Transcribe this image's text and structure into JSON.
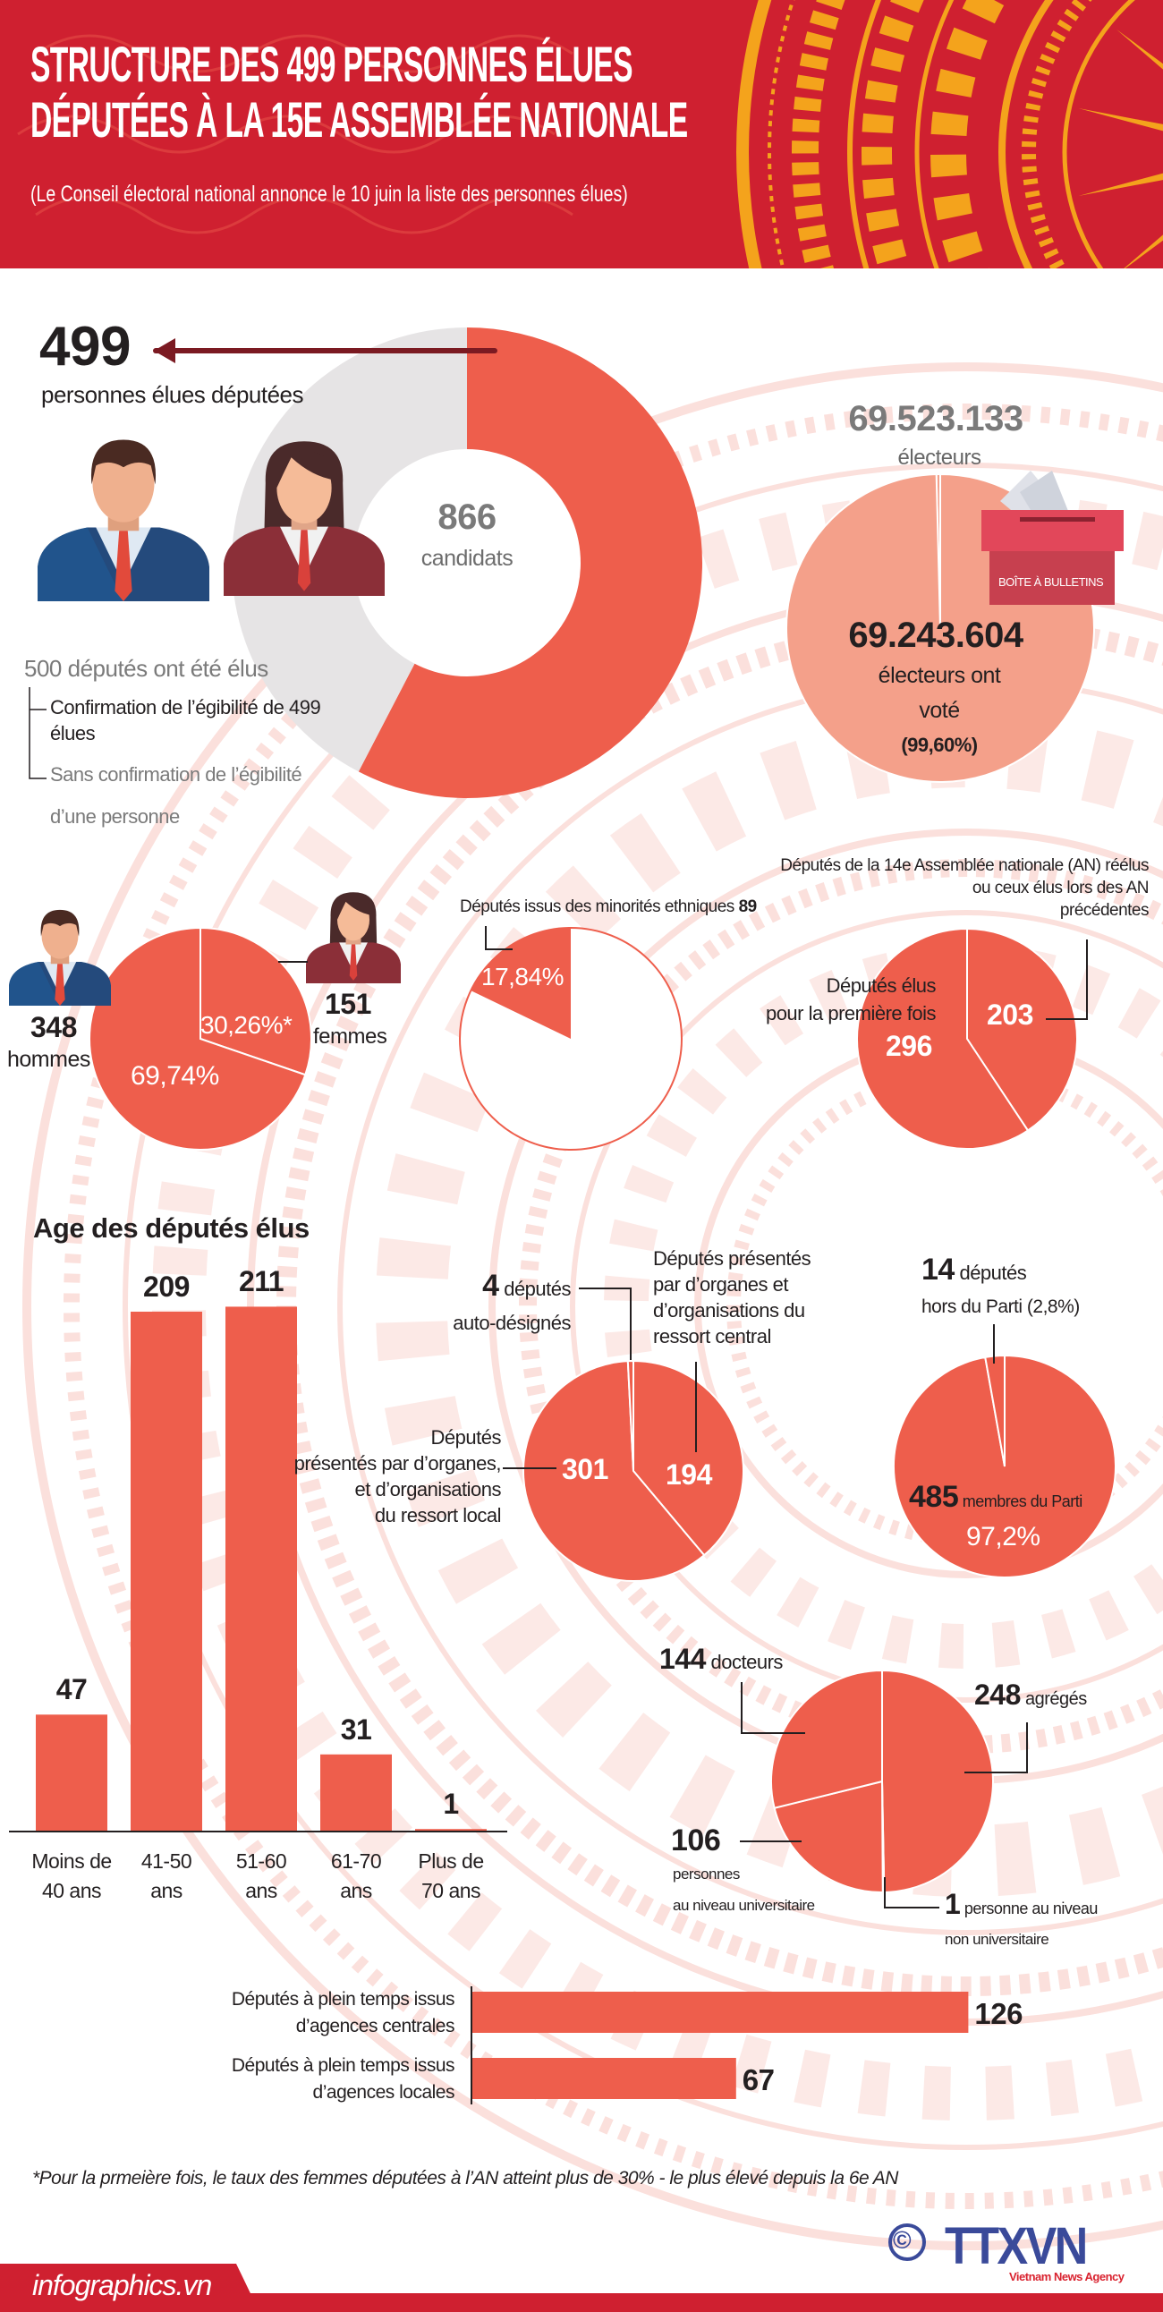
{
  "header": {
    "title_line1": "STRUCTURE DES 499 PERSONNES ÉLUES",
    "title_line2": "DÉPUTÉES À LA 15E ASSEMBLÉE NATIONALE",
    "subtitle": "(Le Conseil électoral national annonce  le 10 juin la liste des personnes élues)"
  },
  "candidates": {
    "elected": "499",
    "elected_label": "personnes élues députées",
    "total": "866",
    "total_label": "candidats",
    "note_title": "500 députés ont été élus",
    "note_confirmed_1": "Confirmation de l’égibilité de 499",
    "note_confirmed_2": "élues",
    "note_unconfirmed_1": "Sans confirmation de l’égibilité",
    "note_unconfirmed_2": "d’une personne"
  },
  "voters": {
    "total": "69.523.133",
    "total_label": "électeurs",
    "voted": "69.243.604",
    "voted_label_1": "électeurs ont",
    "voted_label_2": "voté",
    "percent": "(99,60%)",
    "ballot_box_label": "BOÎTE À BULLETINS"
  },
  "gender": {
    "men_count": "348",
    "men_label": "hommes",
    "women_count": "151",
    "women_label": "femmes",
    "men_pct": "69,74%",
    "women_pct": "30,26%*"
  },
  "minorities": {
    "label": "Députés issus des minorités ethniques ",
    "count": "89",
    "pct": "17,84%"
  },
  "reelected": {
    "label": "Députés de la 14e Assemblée nationale (AN) réélus\nou ceux élus lors des AN\nprécédentes",
    "count": "203",
    "first_time_label": "Députés élus\npour la première fois",
    "first_time_count": "296"
  },
  "age": {
    "title": "Age des députés élus"
  },
  "nomination": {
    "self_count": "4",
    "self_label_1": "députés",
    "self_label_2": "auto-désignés",
    "central_label": "Députés présentés\npar d’organes et\n d’organisations du\nressort central",
    "central_count": "194",
    "local_label": "Députés\nprésentés par d’organes,\net d’organisations\ndu ressort local",
    "local_count": "301"
  },
  "party": {
    "non_member_count": "14",
    "non_member_label_1": "députés",
    "non_member_label_2": "hors du Parti (2,8%)",
    "member_count": "485",
    "member_label": "membres du Parti",
    "member_pct": "97,2%"
  },
  "education": {
    "doctors_count": "144",
    "doctors_label": "docteurs",
    "masters_count": "248",
    "masters_label": "agrégés",
    "university_count": "106",
    "university_label_1": "personnes",
    "university_label_2": "au niveau universitaire",
    "non_university_count": "1",
    "non_university_label_1": "personne au niveau",
    "non_university_label_2": "non universitaire"
  },
  "footnote": "*Pour la prmeière fois, le taux des femmes députées à l’AN atteint plus de 30% - le plus élevé depuis la 6e AN",
  "footer": {
    "site": "infographics.vn",
    "logo_text": "TTXVN",
    "logo_subtitle": "Vietnam News Agency",
    "copyright": "©"
  },
  "colors": {
    "header_red": "#cf2030",
    "slice_red": "#ee5e4c",
    "donut_gray": "#e6e4e5",
    "voter_salmon": "#f4a08a",
    "arrow": "#7b1a22",
    "text": "#231f20",
    "logo_blue": "#3a4a9a",
    "ornament_gold": "#f4a31c"
  },
  "icons": [
    "man-avatar-icon",
    "woman-avatar-icon",
    "ballot-box-icon",
    "arrow-left-icon",
    "copyright-icon"
  ],
  "chart_data": [
    {
      "type": "pie",
      "style": "donut",
      "values": [
        499,
        367
      ]
    },
    {
      "type": "pie",
      "values": [
        99.6,
        0.4
      ]
    },
    {
      "type": "pie",
      "categories": [
        "hommes",
        "femmes"
      ],
      "values": [
        348,
        151
      ]
    },
    {
      "type": "pie",
      "values": [
        17.84,
        82.16
      ]
    },
    {
      "type": "pie",
      "values": [
        296,
        203
      ]
    },
    {
      "type": "bar",
      "title": "Age des députés élus",
      "categories": [
        "Moins de\n40 ans",
        "41-50\nans",
        "51-60\nans",
        "61-70\nans",
        "Plus de\n70 ans"
      ],
      "values": [
        47,
        209,
        211,
        31,
        1
      ]
    },
    {
      "type": "pie",
      "values": [
        4,
        194,
        301
      ]
    },
    {
      "type": "pie",
      "values": [
        485,
        14
      ]
    },
    {
      "type": "pie",
      "categories": [
        "agrégés",
        "personne au niveau non universitaire",
        "personnes au niveau universitaire",
        "docteurs"
      ],
      "values": [
        248,
        1,
        106,
        144
      ]
    },
    {
      "type": "bar",
      "orientation": "horizontal",
      "categories": [
        "Députés à plein temps issus\nd’agences centrales",
        "Députés à plein temps issus\nd’agences locales"
      ],
      "values": [
        126,
        67
      ]
    }
  ]
}
